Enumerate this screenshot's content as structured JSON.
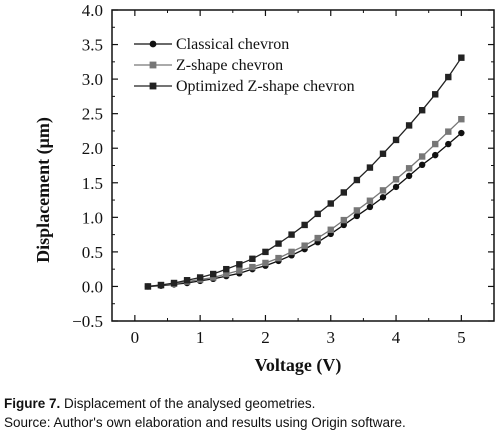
{
  "chart_data": {
    "type": "line",
    "xlabel": "Voltage (V)",
    "ylabel": "Displacement (μm)",
    "xlim": [
      -0.35,
      5.5
    ],
    "ylim": [
      -0.5,
      4.0
    ],
    "xticks": [
      0,
      1,
      2,
      3,
      4,
      5
    ],
    "yticks": [
      -0.5,
      0.0,
      0.5,
      1.0,
      1.5,
      2.0,
      2.5,
      3.0,
      3.5,
      4.0
    ],
    "ytick_labels": [
      "−0.5",
      "0.0",
      "0.5",
      "1.0",
      "1.5",
      "2.0",
      "2.5",
      "3.0",
      "3.5",
      "4.0"
    ],
    "grid": false,
    "legend_position": "top-left",
    "x": [
      0.2,
      0.4,
      0.6,
      0.8,
      1.0,
      1.2,
      1.4,
      1.6,
      1.8,
      2.0,
      2.2,
      2.4,
      2.6,
      2.8,
      3.0,
      3.2,
      3.4,
      3.6,
      3.8,
      4.0,
      4.2,
      4.4,
      4.6,
      4.8,
      5.0
    ],
    "series": [
      {
        "name": "Classical chevron",
        "marker": "circle",
        "color": "#111111",
        "values": [
          0.0,
          0.01,
          0.03,
          0.05,
          0.08,
          0.11,
          0.15,
          0.19,
          0.25,
          0.3,
          0.37,
          0.45,
          0.54,
          0.64,
          0.76,
          0.89,
          1.02,
          1.15,
          1.29,
          1.44,
          1.6,
          1.76,
          1.9,
          2.06,
          2.22
        ]
      },
      {
        "name": "Z-shape chevron",
        "marker": "square",
        "color": "#777777",
        "values": [
          0.0,
          0.02,
          0.04,
          0.07,
          0.1,
          0.13,
          0.18,
          0.23,
          0.28,
          0.34,
          0.41,
          0.5,
          0.59,
          0.7,
          0.82,
          0.96,
          1.1,
          1.24,
          1.39,
          1.55,
          1.71,
          1.88,
          2.06,
          2.24,
          2.42
        ]
      },
      {
        "name": "Optimized Z-shape chevron",
        "marker": "square",
        "color": "#222222",
        "values": [
          0.0,
          0.02,
          0.05,
          0.09,
          0.13,
          0.18,
          0.25,
          0.32,
          0.4,
          0.5,
          0.62,
          0.75,
          0.89,
          1.05,
          1.2,
          1.36,
          1.54,
          1.72,
          1.92,
          2.12,
          2.33,
          2.55,
          2.78,
          3.03,
          3.31
        ]
      }
    ]
  },
  "caption": {
    "figure_label": "Figure 7.",
    "figure_text": " Displacement of the analysed geometries.",
    "source": "Source: Author's own elaboration and results using Origin software."
  }
}
